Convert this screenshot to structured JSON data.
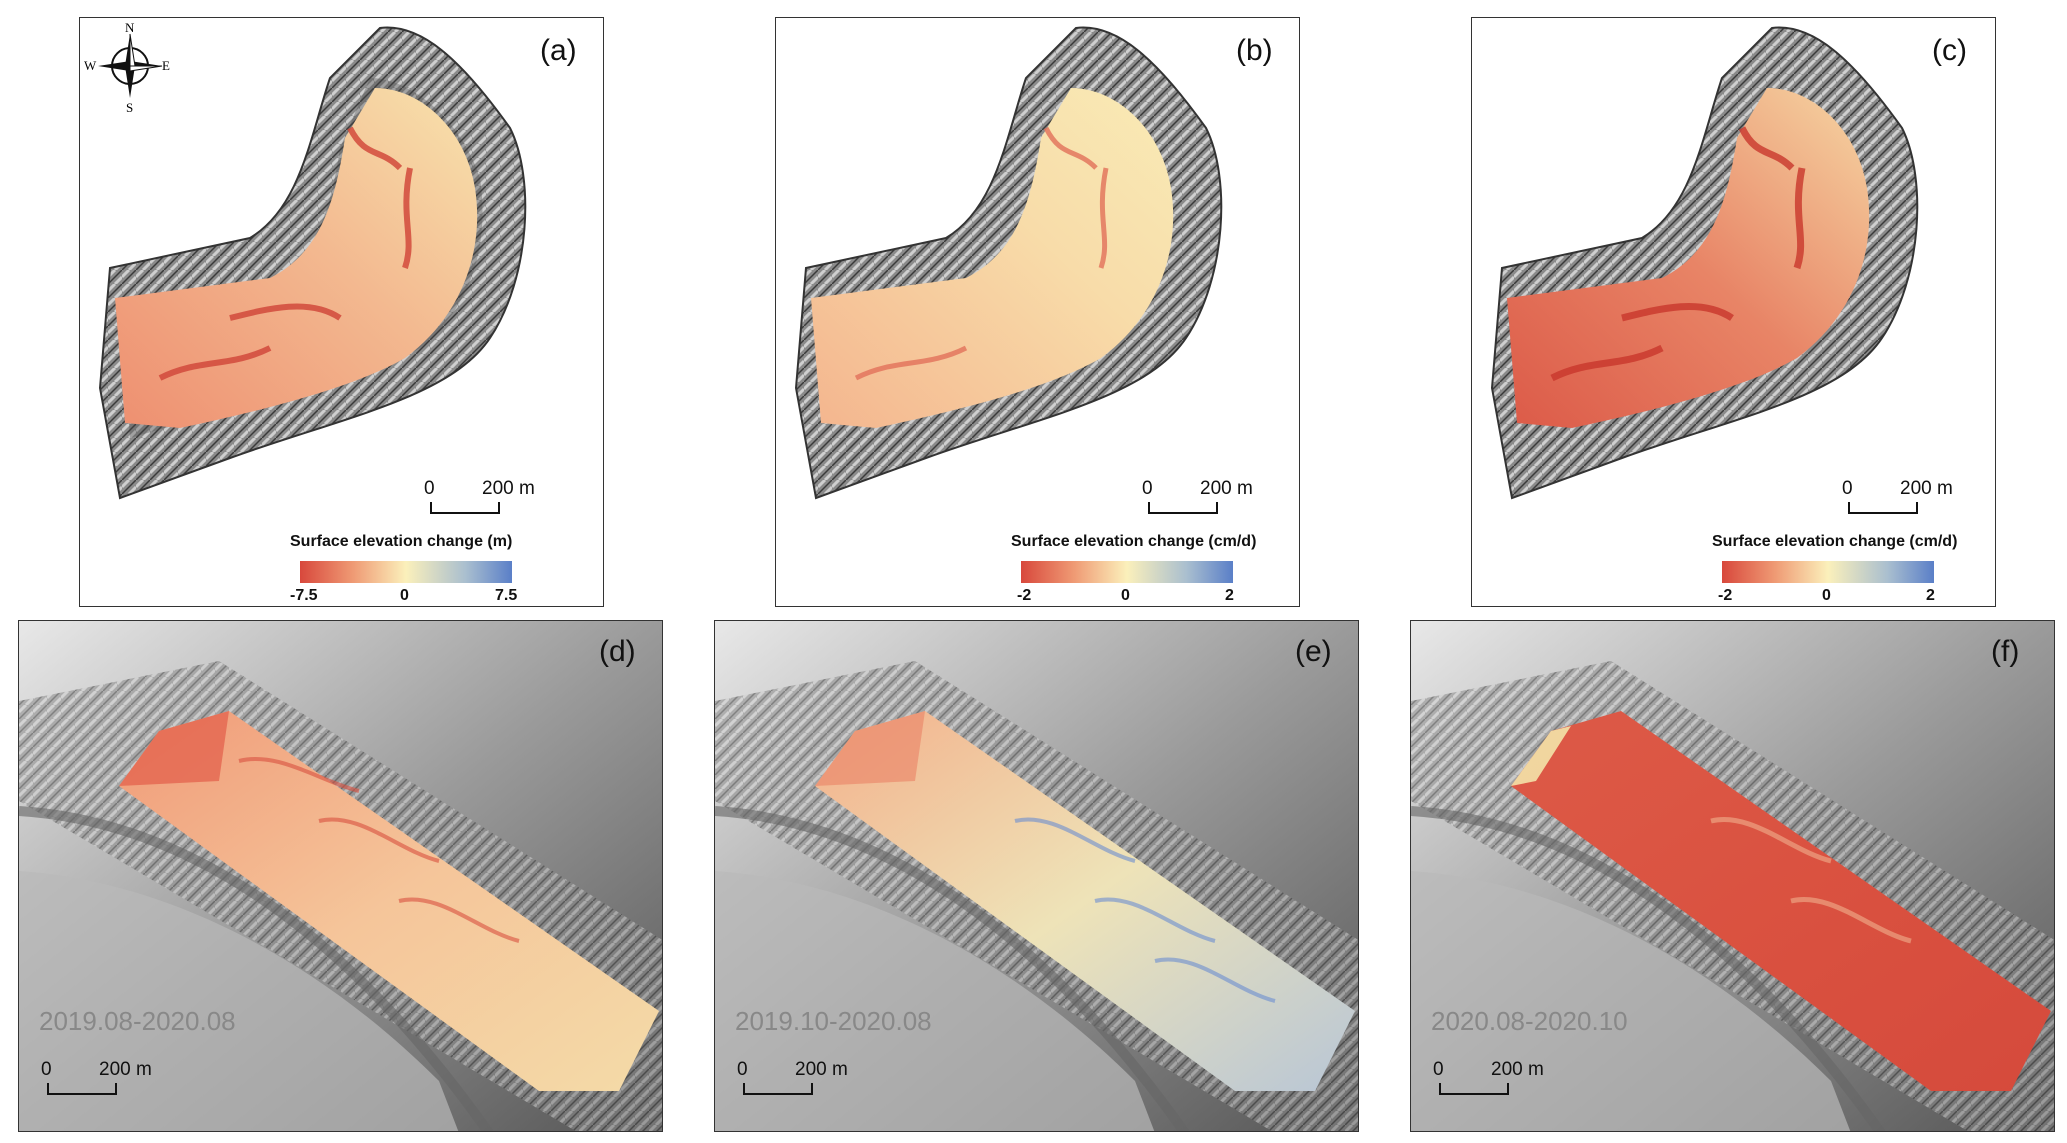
{
  "panels_top": [
    {
      "label": "(a)",
      "legend": {
        "title": "Surface elevation change (m)",
        "min": "-7.5",
        "mid": "0",
        "max": "7.5"
      }
    },
    {
      "label": "(b)",
      "legend": {
        "title": "Surface elevation change (cm/d)",
        "min": "-2",
        "mid": "0",
        "max": "2"
      }
    },
    {
      "label": "(c)",
      "legend": {
        "title": "Surface elevation change (cm/d)",
        "min": "-2",
        "mid": "0",
        "max": "2"
      }
    }
  ],
  "panels_bottom": [
    {
      "label": "(d)",
      "period": "2019.08-2020.08"
    },
    {
      "label": "(e)",
      "period": "2019.10-2020.08"
    },
    {
      "label": "(f)",
      "period": "2020.08-2020.10"
    }
  ],
  "scalebar": {
    "start": "0",
    "end": "200 m"
  },
  "compass": {
    "n": "N",
    "s": "S",
    "e": "E",
    "w": "W"
  },
  "colors": {
    "decrease": "#d8483c",
    "neutral": "#fbf0bb",
    "increase": "#5a7fc8"
  }
}
